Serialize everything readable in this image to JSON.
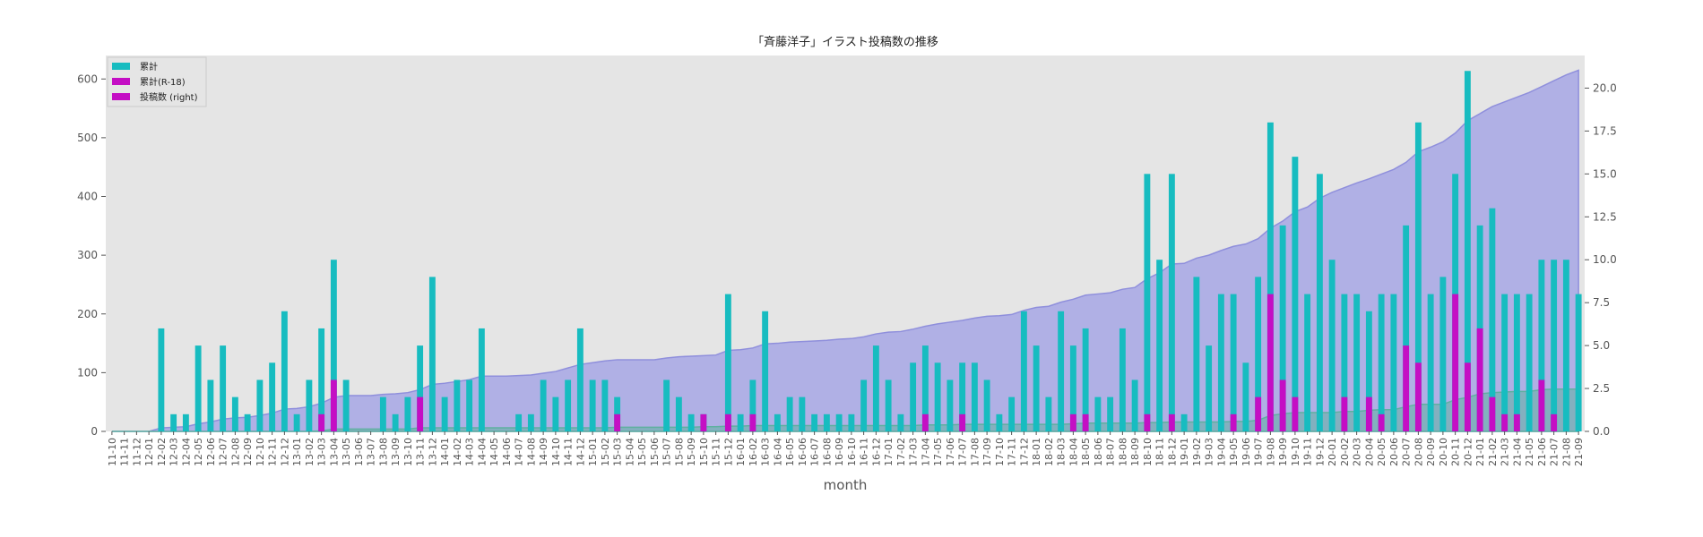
{
  "chart_data": {
    "type": "bar",
    "title": "「斉藤洋子」イラスト投稿数の推移",
    "xlabel": "month",
    "ylabel": "",
    "ylim": [
      0,
      640
    ],
    "ylim_right": [
      0,
      21.9
    ],
    "yticks": [
      0,
      100,
      200,
      300,
      400,
      500,
      600
    ],
    "yticks_right": [
      "0.0",
      "2.5",
      "5.0",
      "7.5",
      "10.0",
      "12.5",
      "15.0",
      "17.5",
      "20.0"
    ],
    "grid": false,
    "legend_position": "top-left",
    "colors": {
      "cyan": "#17bcc0",
      "magenta": "#c40ec4",
      "area": "#9d9de4",
      "area_line": "#8f8fdc",
      "bg": "#e5e5e5"
    },
    "categories": [
      "11-10",
      "11-11",
      "11-12",
      "12-01",
      "12-02",
      "12-03",
      "12-04",
      "12-05",
      "12-06",
      "12-07",
      "12-08",
      "12-09",
      "12-10",
      "12-11",
      "12-12",
      "13-01",
      "13-02",
      "13-03",
      "13-04",
      "13-05",
      "13-06",
      "13-07",
      "13-08",
      "13-09",
      "13-10",
      "13-11",
      "13-12",
      "14-01",
      "14-02",
      "14-03",
      "14-04",
      "14-05",
      "14-06",
      "14-07",
      "14-08",
      "14-09",
      "14-10",
      "14-11",
      "14-12",
      "15-01",
      "15-02",
      "15-03",
      "15-04",
      "15-05",
      "15-06",
      "15-07",
      "15-08",
      "15-09",
      "15-10",
      "15-11",
      "15-12",
      "16-01",
      "16-02",
      "16-03",
      "16-04",
      "16-05",
      "16-06",
      "16-07",
      "16-08",
      "16-09",
      "16-10",
      "16-11",
      "16-12",
      "17-01",
      "17-02",
      "17-03",
      "17-04",
      "17-05",
      "17-06",
      "17-07",
      "17-08",
      "17-09",
      "17-10",
      "17-11",
      "17-12",
      "18-01",
      "18-02",
      "18-03",
      "18-04",
      "18-05",
      "18-06",
      "18-07",
      "18-08",
      "18-09",
      "18-10",
      "18-11",
      "18-12",
      "19-01",
      "19-02",
      "19-03",
      "19-04",
      "19-05",
      "19-06",
      "19-07",
      "19-08",
      "19-09",
      "19-10",
      "19-11",
      "19-12",
      "20-01",
      "20-02",
      "20-03",
      "20-04",
      "20-05",
      "20-06",
      "20-07",
      "20-08",
      "20-09",
      "20-10",
      "20-11",
      "20-12",
      "21-01",
      "21-02",
      "21-03",
      "21-04",
      "21-05",
      "21-06",
      "21-07",
      "21-08",
      "21-09"
    ],
    "series": [
      {
        "name": "累計",
        "axis": "left",
        "kind": "area",
        "color": "#9d9de4",
        "values": [
          0,
          0,
          0,
          0,
          6,
          7,
          8,
          13,
          16,
          21,
          23,
          24,
          27,
          31,
          38,
          39,
          42,
          48,
          58,
          61,
          61,
          61,
          63,
          64,
          66,
          71,
          80,
          82,
          85,
          88,
          94,
          94,
          94,
          95,
          96,
          99,
          102,
          108,
          114,
          117,
          120,
          122,
          122,
          122,
          122,
          125,
          127,
          128,
          129,
          130,
          138,
          139,
          142,
          149,
          150,
          152,
          153,
          154,
          155,
          157,
          158,
          161,
          166,
          169,
          170,
          174,
          179,
          183,
          186,
          189,
          193,
          196,
          197,
          199,
          206,
          211,
          213,
          220,
          225,
          232,
          234,
          236,
          242,
          245,
          260,
          270,
          285,
          286,
          295,
          300,
          308,
          315,
          319,
          328,
          346,
          358,
          374,
          382,
          397,
          407,
          415,
          423,
          430,
          438,
          446,
          458,
          476,
          484,
          493,
          508,
          529,
          541,
          553,
          561,
          569,
          577,
          587,
          597,
          607,
          615
        ]
      },
      {
        "name": "累計(R-18)",
        "axis": "left",
        "kind": "area",
        "color": "#5fb0a0",
        "values": [
          0,
          0,
          0,
          0,
          0,
          0,
          0,
          0,
          0,
          0,
          0,
          0,
          0,
          0,
          0,
          0,
          0,
          1,
          4,
          4,
          4,
          4,
          4,
          4,
          4,
          6,
          6,
          6,
          6,
          6,
          6,
          6,
          6,
          6,
          6,
          6,
          6,
          6,
          6,
          6,
          6,
          7,
          7,
          7,
          7,
          7,
          7,
          7,
          8,
          8,
          9,
          9,
          10,
          10,
          10,
          10,
          10,
          10,
          10,
          10,
          10,
          10,
          10,
          10,
          10,
          10,
          11,
          11,
          11,
          12,
          12,
          12,
          12,
          12,
          12,
          12,
          12,
          12,
          13,
          14,
          14,
          14,
          14,
          14,
          15,
          15,
          16,
          16,
          16,
          16,
          16,
          17,
          17,
          19,
          27,
          30,
          32,
          32,
          32,
          32,
          34,
          34,
          36,
          37,
          37,
          42,
          46,
          46,
          46,
          54,
          58,
          64,
          66,
          67,
          68,
          68,
          71,
          72,
          72,
          72
        ]
      },
      {
        "name": "投稿数 (right)",
        "axis": "right",
        "kind": "bar",
        "color": "#17bcc0",
        "values": [
          0,
          0,
          0,
          0,
          6,
          1,
          1,
          5,
          3,
          5,
          2,
          1,
          3,
          4,
          7,
          1,
          3,
          6,
          10,
          3,
          0,
          0,
          2,
          1,
          2,
          5,
          9,
          2,
          3,
          3,
          6,
          0,
          0,
          1,
          1,
          3,
          2,
          3,
          6,
          3,
          3,
          2,
          0,
          0,
          0,
          3,
          2,
          1,
          1,
          0,
          8,
          1,
          3,
          7,
          1,
          2,
          2,
          1,
          1,
          1,
          1,
          3,
          5,
          3,
          1,
          4,
          5,
          4,
          3,
          4,
          4,
          3,
          1,
          2,
          7,
          5,
          2,
          7,
          5,
          6,
          2,
          2,
          6,
          3,
          15,
          10,
          15,
          1,
          9,
          5,
          8,
          8,
          4,
          9,
          18,
          12,
          16,
          8,
          15,
          10,
          8,
          8,
          7,
          8,
          8,
          12,
          18,
          8,
          9,
          15,
          21,
          12,
          13,
          8,
          8,
          8,
          10,
          10,
          10,
          8
        ]
      },
      {
        "name": "投稿数 (R-18)",
        "axis": "right",
        "kind": "bar",
        "color": "#c40ec4",
        "values": [
          0,
          0,
          0,
          0,
          0,
          0,
          0,
          0,
          0,
          0,
          0,
          0,
          0,
          0,
          0,
          0,
          0,
          1,
          3,
          0,
          0,
          0,
          0,
          0,
          0,
          2,
          0,
          0,
          0,
          0,
          0,
          0,
          0,
          0,
          0,
          0,
          0,
          0,
          0,
          0,
          0,
          1,
          0,
          0,
          0,
          0,
          0,
          0,
          1,
          0,
          1,
          0,
          1,
          0,
          0,
          0,
          0,
          0,
          0,
          0,
          0,
          0,
          0,
          0,
          0,
          0,
          1,
          0,
          0,
          1,
          0,
          0,
          0,
          0,
          0,
          0,
          0,
          0,
          1,
          1,
          0,
          0,
          0,
          0,
          1,
          0,
          1,
          0,
          0,
          0,
          0,
          1,
          0,
          2,
          8,
          3,
          2,
          0,
          0,
          0,
          2,
          0,
          2,
          1,
          0,
          5,
          4,
          0,
          0,
          8,
          4,
          6,
          2,
          1,
          1,
          0,
          3,
          1,
          0,
          0
        ]
      }
    ]
  },
  "legend": [
    {
      "label": "累計",
      "color": "#17bcc0"
    },
    {
      "label": "累計(R-18)",
      "color": "#c40ec4"
    },
    {
      "label": "投稿数 (right)",
      "color": "#c40ec4"
    }
  ]
}
